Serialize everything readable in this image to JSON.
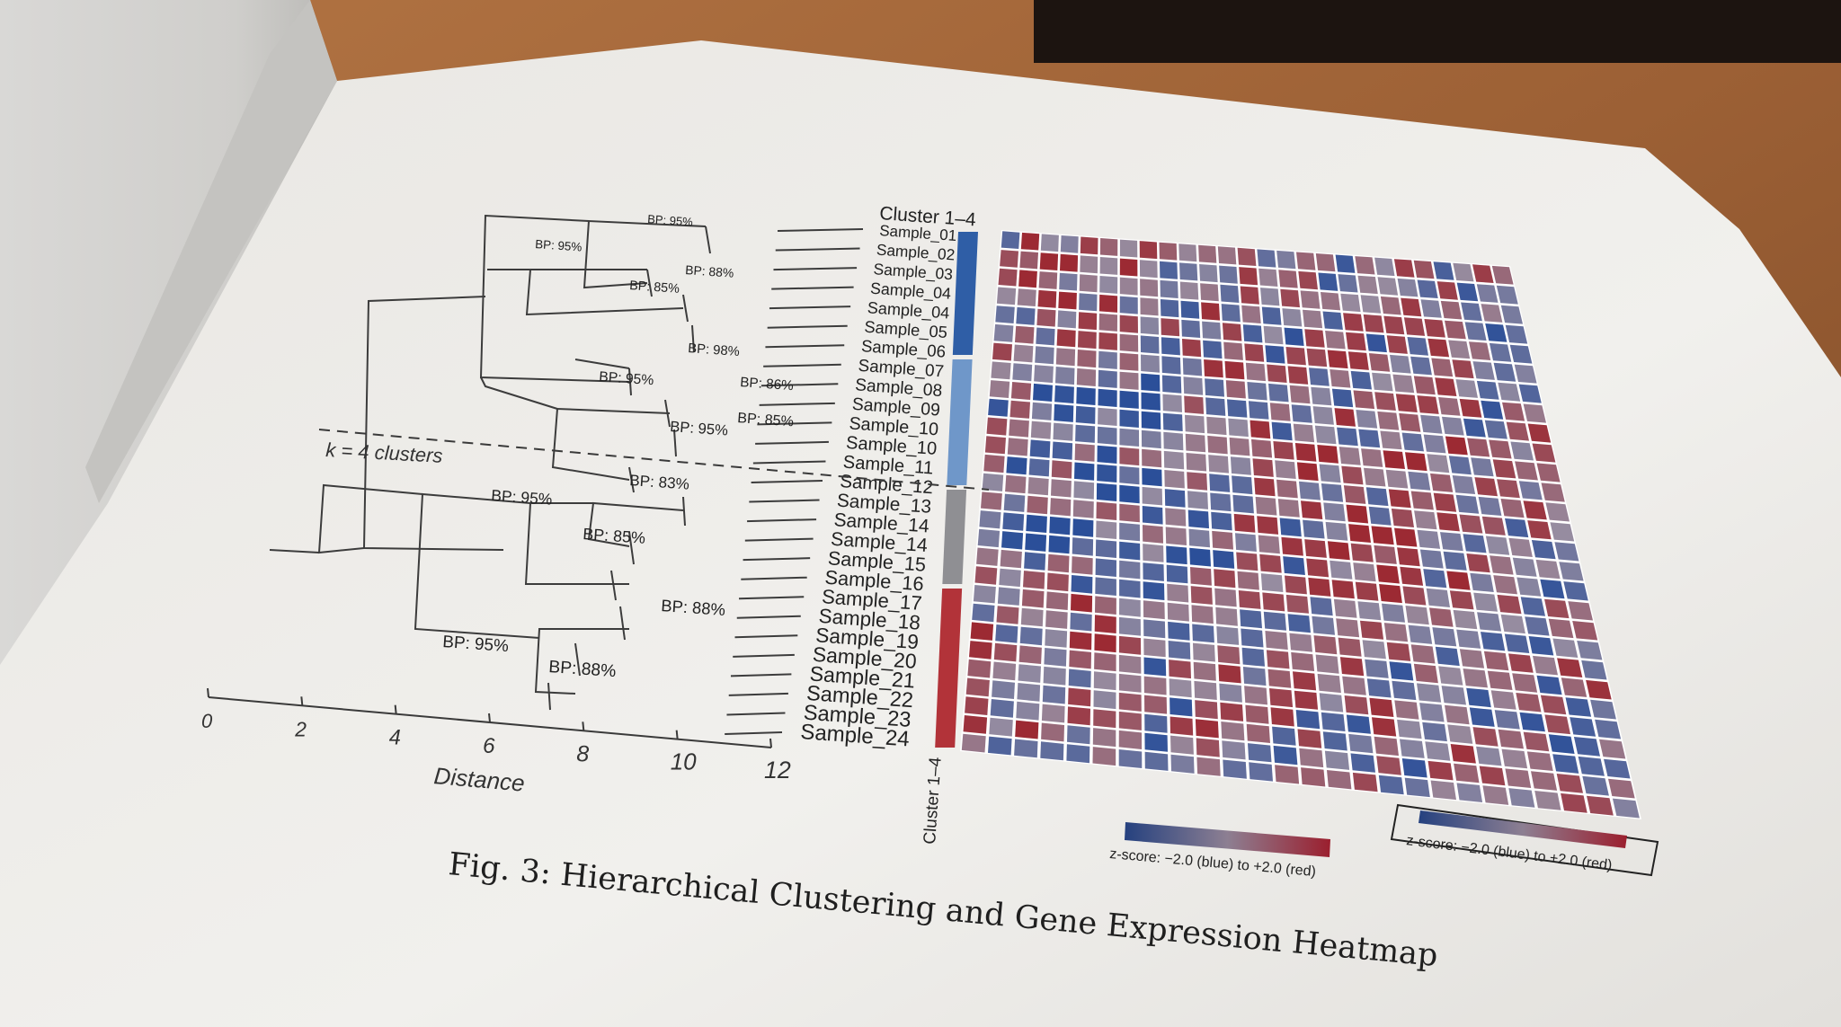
{
  "figure": {
    "caption": "Fig. 3: Hierarchical Clustering and Gene Expression Heatmap",
    "cluster_header": "Cluster 1–4",
    "cluster_footer": "Cluster 1–4",
    "k_label": "k = 4 clusters",
    "axis_label": "Distance",
    "axis_ticks": [
      "0",
      "2",
      "4",
      "6",
      "8",
      "10",
      "12"
    ],
    "colorbar_label": "z-score: −2.0 (blue) to +2.0 (red)",
    "colorbar_label_boxed": "z-score: −2.0 (blue) to +2.0 (red)",
    "samples": [
      "Sample_01",
      "Sample_02",
      "Sample_03",
      "Sample_04",
      "Sample_04",
      "Sample_05",
      "Sample_06",
      "Sample_07",
      "Sample_08",
      "Sample_09",
      "Sample_10",
      "Sample_10",
      "Sample_11",
      "Sample_12",
      "Sample_13",
      "Sample_14",
      "Sample_14",
      "Sample_15",
      "Sample_16",
      "Sample_17",
      "Sample_18",
      "Sample_19",
      "Sample_20",
      "Sample_21",
      "Sample_22",
      "Sample_23",
      "Sample_24"
    ],
    "bootstrap_labels": [
      "BP: 95%",
      "BP: 95%",
      "BP: 88%",
      "BP: 85%",
      "BP: 98%",
      "BP: 86%",
      "BP: 95%",
      "BP: 85%",
      "BP: 95%",
      "BP: 83%",
      "BP: 95%",
      "BP: 85%",
      "BP: 88%",
      "BP: 95%",
      "BP: 88%"
    ],
    "cluster_colors": [
      "#2f5ea6",
      "#6f97c9",
      "#8f8f93",
      "#b23339"
    ],
    "heatmap_low_color": "#2b4f99",
    "heatmap_high_color": "#9c2a33"
  }
}
